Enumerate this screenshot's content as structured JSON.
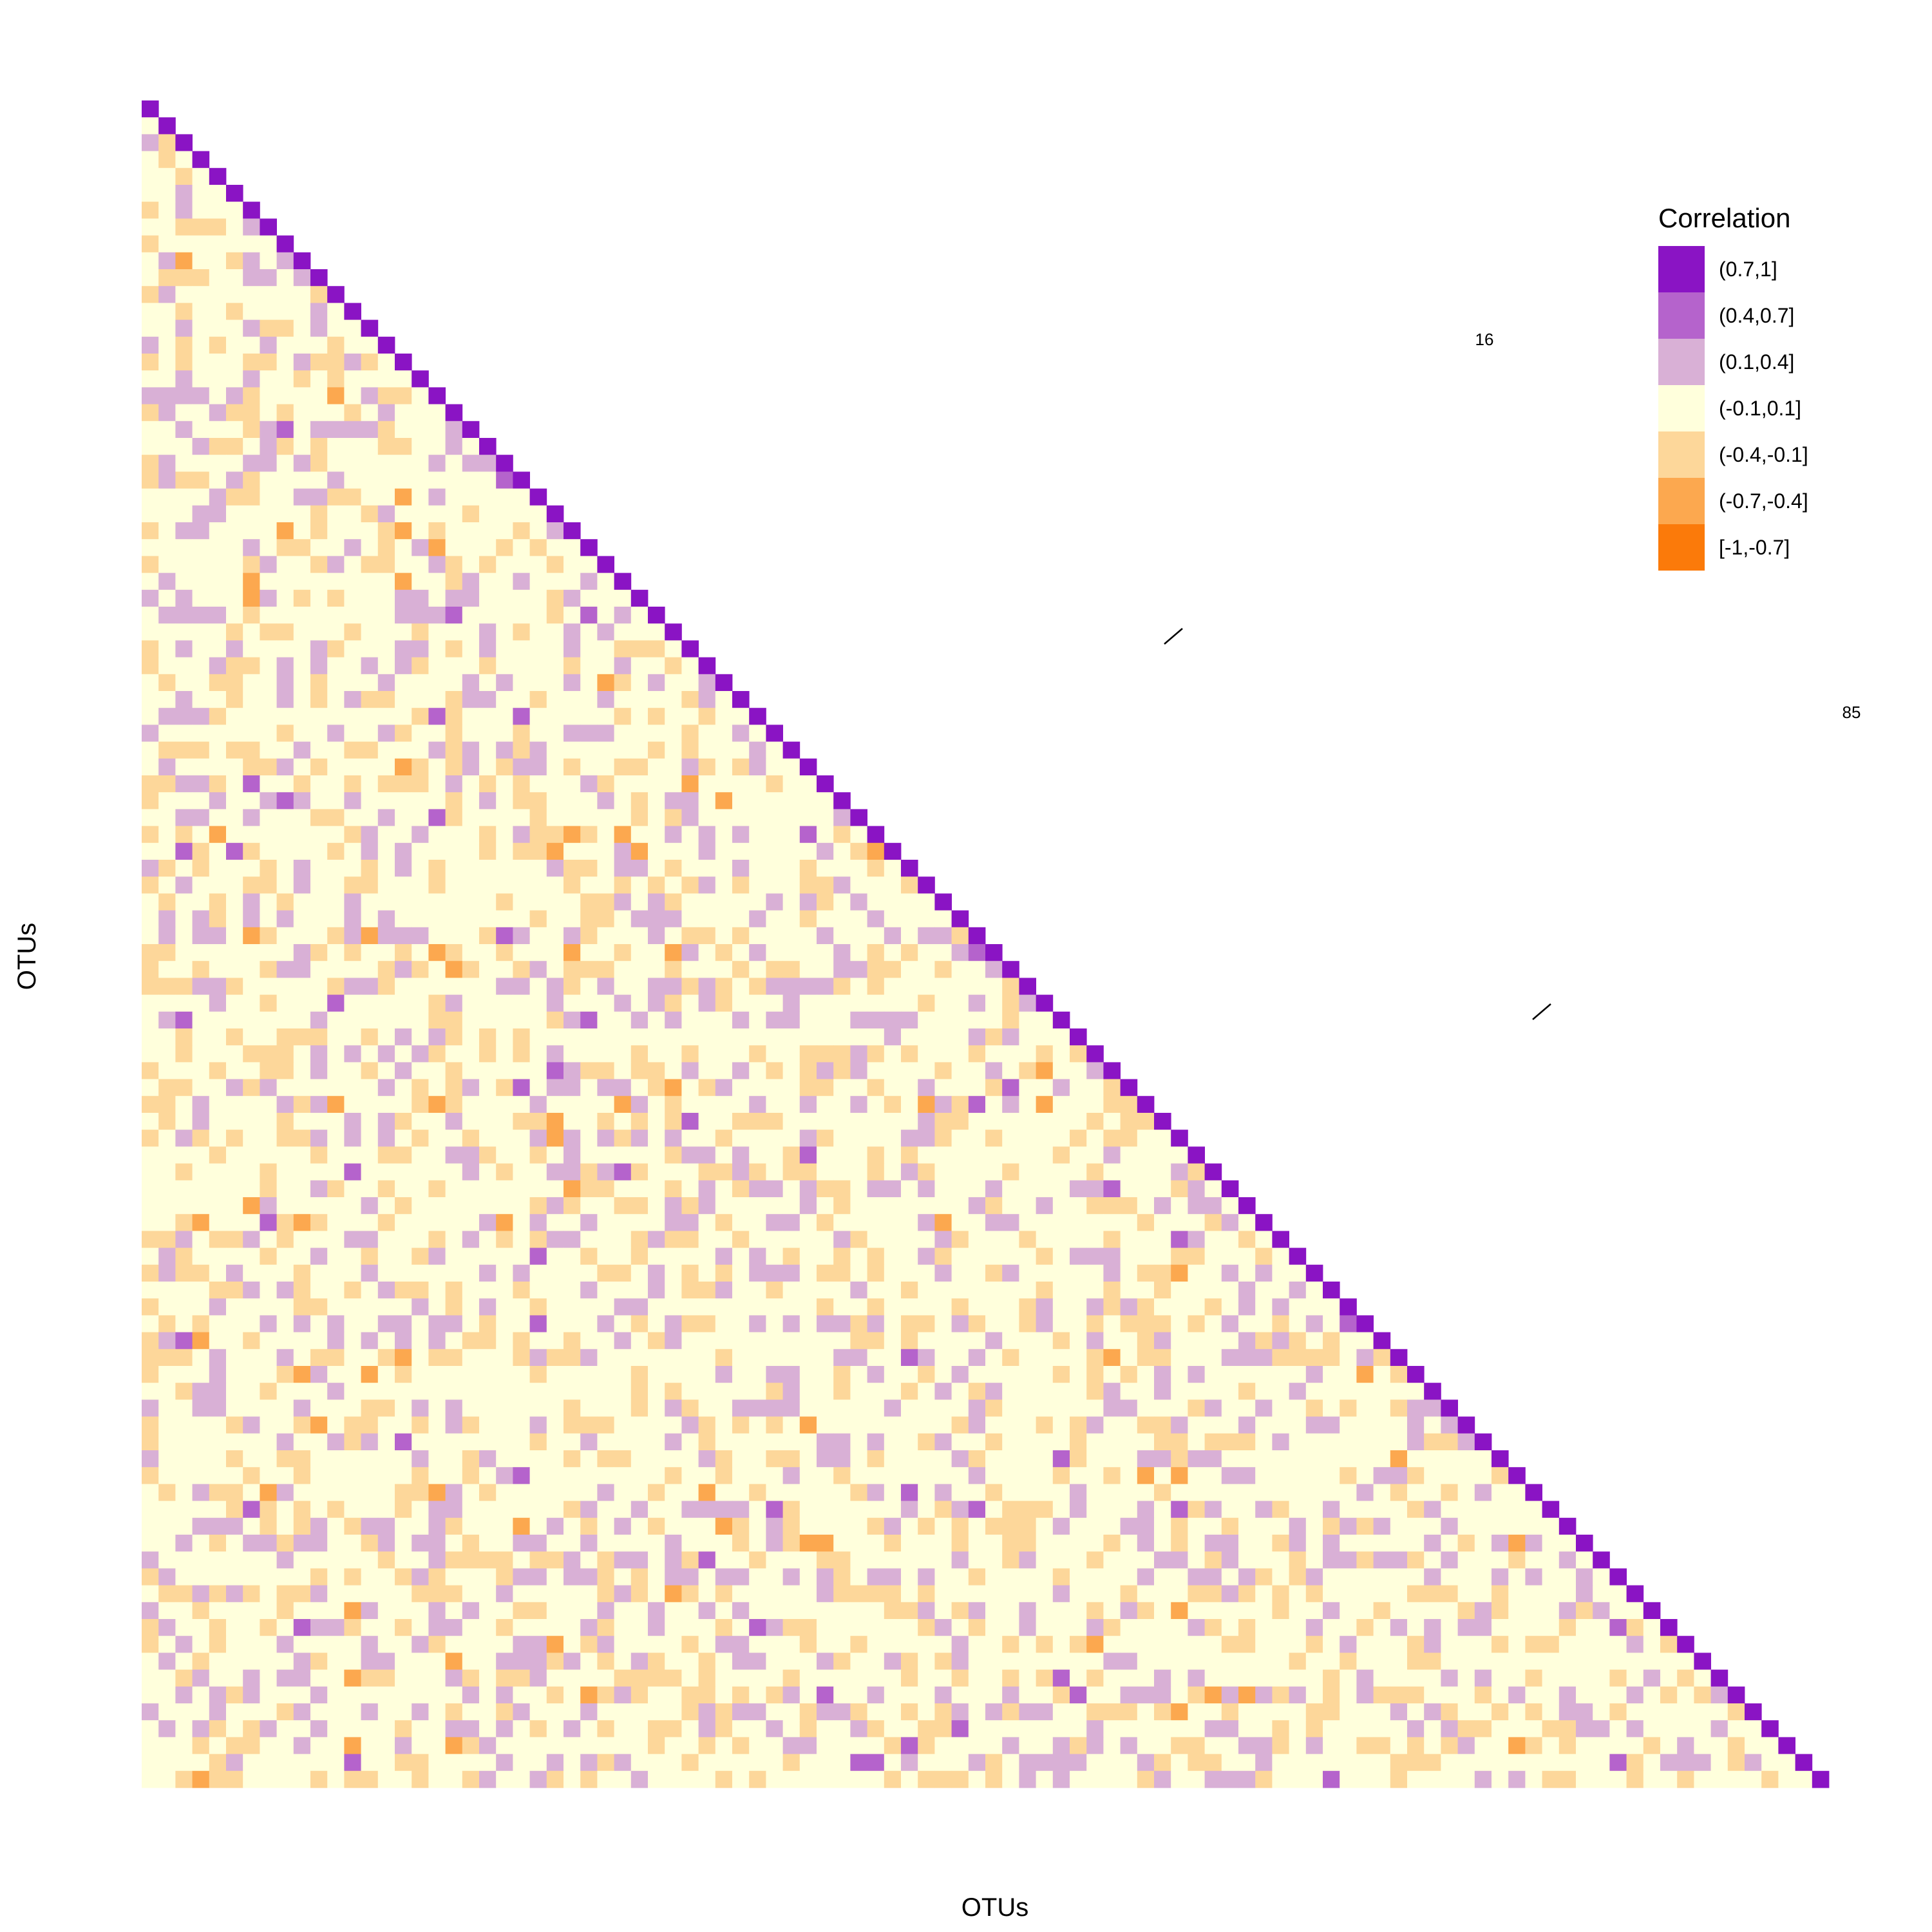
{
  "chart_data": {
    "type": "heatmap",
    "layout": "lower-triangle",
    "n_otus": 100,
    "xlabel": "OTUs",
    "ylabel": "OTUs",
    "legend": {
      "title": "Correlation",
      "placement": "right",
      "bins": [
        {
          "label": "(0.7,1]",
          "color": "#8a14c4"
        },
        {
          "label": "(0.4,0.7]",
          "color": "#b563cc"
        },
        {
          "label": "(0.1,0.4]",
          "color": "#d9b0d6"
        },
        {
          "label": "(-0.1,0.1]",
          "color": "#ffffdc"
        },
        {
          "label": "(-0.4,-0.1]",
          "color": "#fdd79a"
        },
        {
          "label": "(-0.7,-0.4]",
          "color": "#fca84f"
        },
        {
          "label": "[-1,-0.7]",
          "color": "#fb7a0a"
        }
      ]
    },
    "annotations": [
      {
        "text": "16"
      },
      {
        "text": "85"
      }
    ]
  }
}
